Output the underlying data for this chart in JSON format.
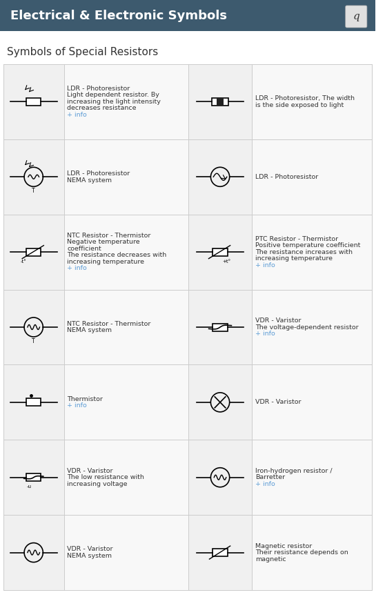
{
  "title": "Electrical & Electronic Symbols",
  "subtitle": "Symbols of Special Resistors",
  "header_bg": "#3d5a6e",
  "header_text_color": "#ffffff",
  "body_bg": "#ffffff",
  "grid_line_color": "#cccccc",
  "cell_bg_symbol": "#f0f0f0",
  "cell_bg_text": "#f8f8f8",
  "info_color": "#5b9bd5",
  "text_color": "#333333",
  "rows": [
    {
      "left_text": "LDR - Photoresistor\nLight dependent resistor. By\nincreasing the light intensity\ndecreases resistance\n+ info",
      "right_text": "LDR - Photoresistor, The width\nis the side exposed to light"
    },
    {
      "left_text": "LDR - Photoresistor\nNEMA system",
      "right_text": "LDR - Photoresistor"
    },
    {
      "left_text": "NTC Resistor - Thermistor\nNegative temperature\ncoefficient\nThe resistance decreases with\nincreasing temperature\n+ info",
      "right_text": "PTC Resistor - Thermistor\nPositive temperature coefficient\nThe resistance increases with\nincreasing temperature\n+ info"
    },
    {
      "left_text": "NTC Resistor - Thermistor\nNEMA system",
      "right_text": "VDR - Varistor\nThe voltage-dependent resistor\n+ info"
    },
    {
      "left_text": "Thermistor\n+ info",
      "right_text": "VDR - Varistor"
    },
    {
      "left_text": "VDR - Varistor\nThe low resistance with\nincreasing voltage",
      "right_text": "Iron-hydrogen resistor /\nBarretter\n+ info"
    },
    {
      "left_text": "VDR - Varistor\nNEMA system",
      "right_text": "Magnetic resistor\nTheir resistance depends on\nmagnetic"
    }
  ]
}
